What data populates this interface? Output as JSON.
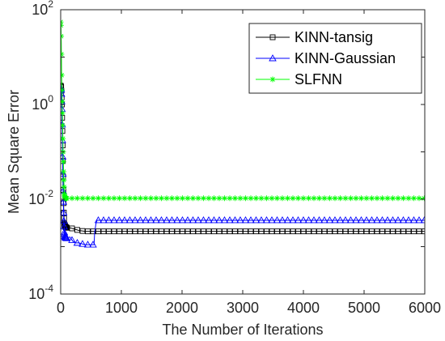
{
  "chart_data": {
    "type": "line",
    "title": "",
    "xlabel": "The Number of Iterations",
    "ylabel": "Mean Square Error",
    "xlim": [
      0,
      6000
    ],
    "ylim": [
      0.0001,
      100
    ],
    "y_scale": "log",
    "x_ticks": [
      {
        "value": 0,
        "label": "0"
      },
      {
        "value": 1000,
        "label": "1000"
      },
      {
        "value": 2000,
        "label": "2000"
      },
      {
        "value": 3000,
        "label": "3000"
      },
      {
        "value": 4000,
        "label": "4000"
      },
      {
        "value": 5000,
        "label": "5000"
      },
      {
        "value": 6000,
        "label": "6000"
      }
    ],
    "y_ticks": [
      {
        "value": 0.0001,
        "base": "10",
        "exp": "-4"
      },
      {
        "value": 0.01,
        "base": "10",
        "exp": "-2"
      },
      {
        "value": 1,
        "base": "10",
        "exp": "0"
      },
      {
        "value": 100,
        "base": "10",
        "exp": "2"
      }
    ],
    "grid": false,
    "legend_position": "top-right",
    "series": [
      {
        "name": "KINN-tansig",
        "color": "#000000",
        "marker": "square",
        "points": [
          [
            0,
            2.5
          ],
          [
            10,
            2.3
          ],
          [
            20,
            1.0
          ],
          [
            30,
            0.2
          ],
          [
            40,
            0.03
          ],
          [
            50,
            0.006
          ],
          [
            60,
            0.003
          ],
          [
            80,
            0.0026
          ],
          [
            100,
            0.0025
          ],
          [
            150,
            0.0025
          ],
          [
            200,
            0.0024
          ],
          [
            300,
            0.0022
          ],
          [
            400,
            0.0021
          ],
          [
            600,
            0.0021
          ],
          [
            6000,
            0.0021
          ]
        ]
      },
      {
        "name": "KINN-Gaussian",
        "color": "#0000ff",
        "marker": "triangle",
        "points": [
          [
            0,
            2.2
          ],
          [
            10,
            2.0
          ],
          [
            20,
            0.8
          ],
          [
            30,
            0.12
          ],
          [
            40,
            0.015
          ],
          [
            50,
            0.004
          ],
          [
            60,
            0.002
          ],
          [
            70,
            0.0016
          ],
          [
            100,
            0.0015
          ],
          [
            150,
            0.0016
          ],
          [
            200,
            0.0013
          ],
          [
            250,
            0.0012
          ],
          [
            300,
            0.0012
          ],
          [
            400,
            0.0011
          ],
          [
            500,
            0.0011
          ],
          [
            550,
            0.0011
          ],
          [
            560,
            0.002
          ],
          [
            580,
            0.003
          ],
          [
            600,
            0.0036
          ],
          [
            700,
            0.0036
          ],
          [
            6000,
            0.0036
          ]
        ]
      },
      {
        "name": "SLFNN",
        "color": "#00ff00",
        "marker": "star",
        "points": [
          [
            0,
            55
          ],
          [
            5,
            45
          ],
          [
            10,
            20
          ],
          [
            15,
            5
          ],
          [
            20,
            2
          ],
          [
            30,
            0.5
          ],
          [
            40,
            0.1
          ],
          [
            50,
            0.03
          ],
          [
            60,
            0.013
          ],
          [
            70,
            0.011
          ],
          [
            80,
            0.0105
          ],
          [
            100,
            0.0105
          ],
          [
            6000,
            0.0105
          ]
        ]
      }
    ]
  }
}
